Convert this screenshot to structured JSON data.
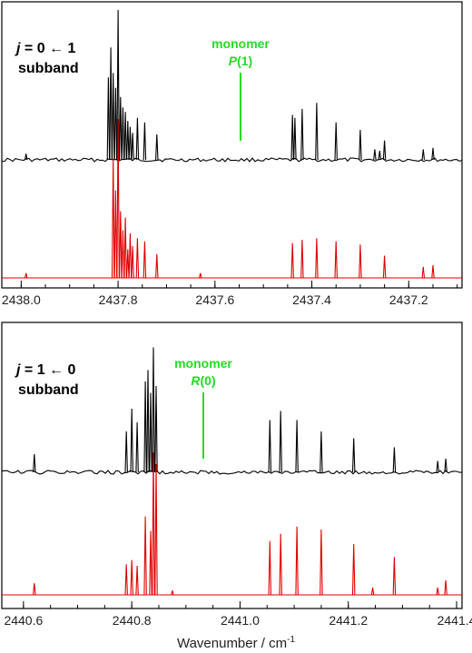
{
  "figure": {
    "xlabel_main": "Wavenumber / cm",
    "xlabel_sup": "-1",
    "colors": {
      "experiment": "#000000",
      "simulation": "#e00000",
      "monomer": "#22dd22"
    }
  },
  "panels": [
    {
      "band_j": "j",
      "band_eq": " = 0 ← 1",
      "band_sub": "subband",
      "monomer_label": "monomer",
      "monomer_line": "P",
      "monomer_arg": "(1)",
      "ticks": [
        "2438.0",
        "2437.8",
        "2437.6",
        "2437.4",
        "2437.2"
      ]
    },
    {
      "band_j": "j",
      "band_eq": " = 1 ← 0",
      "band_sub": "subband",
      "monomer_label": "monomer",
      "monomer_line": "R",
      "monomer_arg": "(0)",
      "ticks": [
        "2440.6",
        "2440.8",
        "2441.0",
        "2441.2",
        "2441.4"
      ]
    }
  ],
  "chart_data": [
    {
      "type": "line",
      "title": "j = 0 ← 1 subband",
      "xlabel": "",
      "x_reversed": true,
      "xlim": [
        2438.04,
        2437.09
      ],
      "annotation": {
        "text": "monomer P(1)",
        "x": 2437.56
      },
      "series": [
        {
          "name": "",
          "lines": [
            [
              2437.82,
              0.55
            ],
            [
              2437.815,
              0.75
            ],
            [
              2437.81,
              0.58
            ],
            [
              2437.805,
              0.48
            ],
            [
              2437.8,
              1.0
            ],
            [
              2437.795,
              0.42
            ],
            [
              2437.79,
              0.35
            ],
            [
              2437.785,
              0.32
            ],
            [
              2437.78,
              0.26
            ],
            [
              2437.775,
              0.22
            ],
            [
              2437.77,
              0.18
            ],
            [
              2437.76,
              0.28
            ],
            [
              2437.745,
              0.25
            ],
            [
              2437.72,
              0.17
            ],
            [
              2437.44,
              0.3
            ],
            [
              2437.435,
              0.28
            ],
            [
              2437.42,
              0.34
            ],
            [
              2437.39,
              0.38
            ],
            [
              2437.35,
              0.25
            ],
            [
              2437.3,
              0.2
            ],
            [
              2437.25,
              0.13
            ],
            [
              2437.17,
              0.07
            ],
            [
              2437.15,
              0.08
            ],
            [
              2437.99,
              0.04
            ],
            [
              2437.27,
              0.07
            ],
            [
              2437.26,
              0.06
            ]
          ]
        },
        {
          "name": "",
          "lines": [
            [
              2437.81,
              0.75
            ],
            [
              2437.805,
              0.55
            ],
            [
              2437.8,
              1.0
            ],
            [
              2437.795,
              0.42
            ],
            [
              2437.79,
              0.3
            ],
            [
              2437.785,
              0.38
            ],
            [
              2437.78,
              0.18
            ],
            [
              2437.775,
              0.28
            ],
            [
              2437.77,
              0.2
            ],
            [
              2437.76,
              0.25
            ],
            [
              2437.745,
              0.23
            ],
            [
              2437.72,
              0.15
            ],
            [
              2437.44,
              0.22
            ],
            [
              2437.42,
              0.24
            ],
            [
              2437.39,
              0.25
            ],
            [
              2437.35,
              0.23
            ],
            [
              2437.3,
              0.21
            ],
            [
              2437.25,
              0.14
            ],
            [
              2437.17,
              0.07
            ],
            [
              2437.15,
              0.08
            ],
            [
              2437.99,
              0.03
            ],
            [
              2437.63,
              0.03
            ]
          ]
        }
      ]
    },
    {
      "type": "line",
      "title": "j = 1 ← 0 subband",
      "xlabel": "Wavenumber / cm-1",
      "xlim": [
        2440.56,
        2441.41
      ],
      "annotation": {
        "text": "monomer R(0)",
        "x": 2440.935
      },
      "series": [
        {
          "name": "",
          "lines": [
            [
              2440.62,
              0.08
            ],
            [
              2440.79,
              0.18
            ],
            [
              2440.8,
              0.28
            ],
            [
              2440.81,
              0.22
            ],
            [
              2440.825,
              0.4
            ],
            [
              2440.83,
              0.45
            ],
            [
              2440.835,
              0.35
            ],
            [
              2440.84,
              0.55
            ],
            [
              2440.845,
              0.38
            ],
            [
              2441.055,
              0.23
            ],
            [
              2441.075,
              0.27
            ],
            [
              2441.105,
              0.23
            ],
            [
              2441.15,
              0.18
            ],
            [
              2441.21,
              0.15
            ],
            [
              2441.285,
              0.11
            ],
            [
              2441.365,
              0.05
            ],
            [
              2441.38,
              0.06
            ]
          ]
        },
        {
          "name": "",
          "lines": [
            [
              2440.62,
              0.08
            ],
            [
              2440.79,
              0.21
            ],
            [
              2440.8,
              0.24
            ],
            [
              2440.81,
              0.2
            ],
            [
              2440.825,
              0.54
            ],
            [
              2440.835,
              0.44
            ],
            [
              2440.84,
              0.98
            ],
            [
              2440.845,
              0.9
            ],
            [
              2440.875,
              0.03
            ],
            [
              2441.055,
              0.37
            ],
            [
              2441.075,
              0.42
            ],
            [
              2441.105,
              0.47
            ],
            [
              2441.15,
              0.45
            ],
            [
              2441.21,
              0.35
            ],
            [
              2441.245,
              0.05
            ],
            [
              2441.285,
              0.26
            ],
            [
              2441.365,
              0.05
            ],
            [
              2441.38,
              0.1
            ]
          ]
        }
      ]
    }
  ]
}
